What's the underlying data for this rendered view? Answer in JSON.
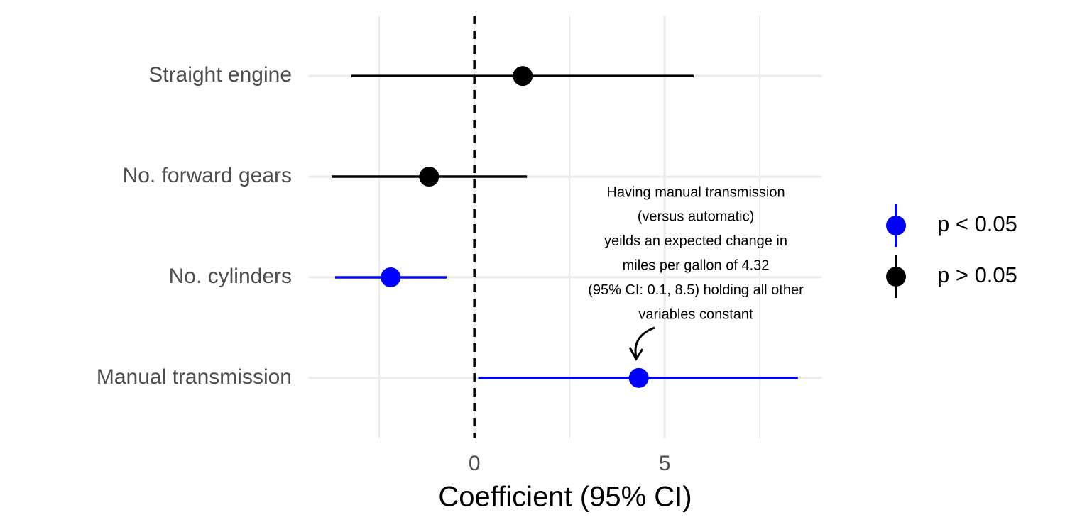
{
  "chart_data": {
    "type": "coefficient",
    "x_label": "Coefficient (95% CI)",
    "categories": [
      "Straight engine",
      "No. forward gears",
      "No. cylinders",
      "Manual transmission"
    ],
    "series": [
      {
        "name": "p < 0.05",
        "color": "#0000ff",
        "values": [
          null,
          null,
          -2.2,
          4.32
        ],
        "lower": [
          null,
          null,
          -3.66,
          0.1
        ],
        "upper": [
          null,
          null,
          -0.73,
          8.5
        ]
      },
      {
        "name": "p > 0.05",
        "color": "#000000",
        "values": [
          1.27,
          -1.19,
          null,
          null
        ],
        "lower": [
          -3.23,
          -3.75,
          null,
          null
        ],
        "upper": [
          5.76,
          1.38,
          null,
          null
        ]
      }
    ],
    "xlim": [
      -4.35,
      9.12
    ],
    "xticks": [
      0,
      5
    ],
    "minor_xticks": [
      -2.5,
      2.5,
      7.5
    ],
    "reference_line": 0,
    "grid": true,
    "legend": "right",
    "annotation": {
      "lines": [
        "Having manual transmission",
        "(versus automatic)",
        "yeilds an expected change in",
        "miles per gallon of 4.32",
        "(95% CI: 0.1, 8.5) holding all other",
        "variables constant"
      ]
    }
  }
}
